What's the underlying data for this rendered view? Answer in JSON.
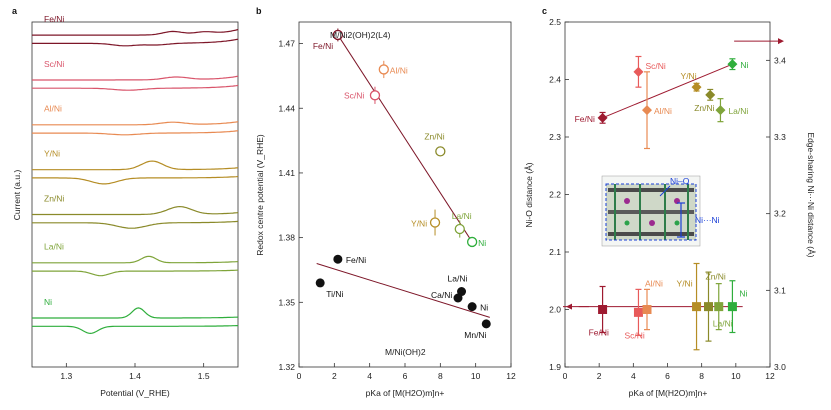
{
  "panels": {
    "a": "a",
    "b": "b",
    "c": "c"
  },
  "chart_data": [
    {
      "id": "a",
      "type": "line",
      "title": "",
      "xlabel": "Potential (V_RHE)",
      "ylabel": "Current (a.u.)",
      "xlim": [
        1.25,
        1.55
      ],
      "xticks": [
        "1.3",
        "1.4",
        "1.5"
      ],
      "series": [
        {
          "name": "Fe/Ni",
          "color": "#7d1628",
          "baseline": 0.95,
          "peaks": [
            {
              "x": 1.455,
              "a": 0.22,
              "w": 0.02
            },
            {
              "x": 1.5,
              "a": 0.15,
              "w": 0.02
            }
          ],
          "rise": 0.9
        },
        {
          "name": "Sc/Ni",
          "color": "#d9556b",
          "baseline": 0.82,
          "peaks": [
            {
              "x": 1.46,
              "a": 0.18,
              "w": 0.025
            }
          ],
          "rise": 0.6
        },
        {
          "name": "Al/Ni",
          "color": "#e88a52",
          "baseline": 0.69,
          "peaks": [
            {
              "x": 1.455,
              "a": 0.16,
              "w": 0.025
            }
          ],
          "rise": 0.5
        },
        {
          "name": "Y/Ni",
          "color": "#b58d25",
          "baseline": 0.56,
          "peaks": [
            {
              "x": 1.425,
              "a": 0.55,
              "w": 0.022
            }
          ],
          "rise": 0.3
        },
        {
          "name": "Zn/Ni",
          "color": "#8a8a2a",
          "baseline": 0.43,
          "peaks": [
            {
              "x": 1.465,
              "a": 0.5,
              "w": 0.025
            }
          ],
          "rise": 0.3
        },
        {
          "name": "La/Ni",
          "color": "#7fa43a",
          "baseline": 0.29,
          "peaks": [
            {
              "x": 1.42,
              "a": 0.42,
              "w": 0.015
            }
          ],
          "rise": 0.2
        },
        {
          "name": "Ni",
          "color": "#2fae3c",
          "baseline": 0.13,
          "peaks": [
            {
              "x": 1.405,
              "a": 0.65,
              "w": 0.013
            }
          ],
          "rise": 0.15
        }
      ]
    },
    {
      "id": "b",
      "type": "scatter",
      "xlabel": "pKa of [M(H2O)m]n+",
      "ylabel": "Redox centre potential (V_RHE)",
      "xlim": [
        0,
        12
      ],
      "ylim": [
        1.32,
        1.48
      ],
      "xticks": [
        "0",
        "2",
        "4",
        "6",
        "8",
        "10",
        "12"
      ],
      "yticks": [
        "1.32",
        "1.35",
        "1.38",
        "1.41",
        "1.44",
        "1.47"
      ],
      "group_label_top": "M/Ni2(OH)2(L4)",
      "group_label_bottom": "M/Ni(OH)2",
      "series": [
        {
          "name": "M/Ni2(OH)2(L4)",
          "marker": "open-circle",
          "points": [
            {
              "label": "Fe/Ni",
              "x": 2.2,
              "y": 1.474,
              "err": 0.003,
              "color": "#7d1628"
            },
            {
              "label": "Al/Ni",
              "x": 4.8,
              "y": 1.458,
              "err": 0.004,
              "color": "#e88a52"
            },
            {
              "label": "Sc/Ni",
              "x": 4.3,
              "y": 1.446,
              "err": 0.004,
              "color": "#d9556b"
            },
            {
              "label": "Zn/Ni",
              "x": 8.0,
              "y": 1.42,
              "err": 0.002,
              "color": "#8a8a2a"
            },
            {
              "label": "Y/Ni",
              "x": 7.7,
              "y": 1.387,
              "err": 0.006,
              "color": "#b58d25"
            },
            {
              "label": "La/Ni",
              "x": 9.1,
              "y": 1.384,
              "err": 0.004,
              "color": "#7fa43a"
            },
            {
              "label": "Ni",
              "x": 9.8,
              "y": 1.378,
              "err": 0.002,
              "color": "#2fae3c"
            }
          ],
          "fit": {
            "x": [
              2.2,
              9.8
            ],
            "y": [
              1.474,
              1.378
            ],
            "color": "#7d1628"
          }
        },
        {
          "name": "M/Ni(OH)2",
          "marker": "filled-circle",
          "points": [
            {
              "label": "Fe/Ni",
              "x": 2.2,
              "y": 1.37
            },
            {
              "label": "Ti/Ni",
              "x": 1.2,
              "y": 1.359
            },
            {
              "label": "La/Ni",
              "x": 9.2,
              "y": 1.355
            },
            {
              "label": "Ca/Ni",
              "x": 9.0,
              "y": 1.352
            },
            {
              "label": "Ni",
              "x": 9.8,
              "y": 1.348
            },
            {
              "label": "Mn/Ni",
              "x": 10.6,
              "y": 1.34
            }
          ],
          "fit": {
            "x": [
              1.0,
              10.8
            ],
            "y": [
              1.368,
              1.343
            ],
            "color": "#7d1628"
          }
        }
      ]
    },
    {
      "id": "c",
      "type": "scatter",
      "xlabel": "pKa of [M(H2O)m]n+",
      "ylabel": "Ni-O distance (Å)",
      "ylabel_right": "Edge-sharing Ni···Ni distance (Å)",
      "xlim": [
        0,
        12
      ],
      "ylim": [
        1.9,
        2.5
      ],
      "ylim_right": [
        3.0,
        3.45
      ],
      "xticks": [
        "0",
        "2",
        "4",
        "6",
        "8",
        "10",
        "12"
      ],
      "yticks": [
        "1.9",
        "2.0",
        "2.1",
        "2.2",
        "2.3",
        "2.4",
        "2.5"
      ],
      "yticks_right": [
        "3.0",
        "3.1",
        "3.2",
        "3.3",
        "3.4"
      ],
      "inset_labels": {
        "nio": "Ni–O",
        "nini": "Ni···Ni"
      },
      "series": [
        {
          "name": "Edge-sharing Ni···Ni distance",
          "axis": "right",
          "marker": "diamond",
          "points": [
            {
              "label": "Fe/Ni",
              "x": 2.2,
              "y": 3.325,
              "err": 0.007,
              "color": "#9e1a30"
            },
            {
              "label": "Sc/Ni",
              "x": 4.3,
              "y": 3.385,
              "err": 0.02,
              "color": "#e85a5a"
            },
            {
              "label": "Al/Ni",
              "x": 4.8,
              "y": 3.335,
              "err": 0.05,
              "color": "#e88a52"
            },
            {
              "label": "Y/Ni",
              "x": 7.7,
              "y": 3.365,
              "err": 0.005,
              "color": "#b58d25"
            },
            {
              "label": "Zn/Ni",
              "x": 8.5,
              "y": 3.355,
              "err": 0.007,
              "color": "#8a8a2a"
            },
            {
              "label": "La/Ni",
              "x": 9.1,
              "y": 3.335,
              "err": 0.015,
              "color": "#7fa43a"
            },
            {
              "label": "Ni",
              "x": 9.8,
              "y": 3.395,
              "err": 0.007,
              "color": "#2fae3c"
            }
          ],
          "fit": {
            "x": [
              2.2,
              9.8
            ],
            "y": [
              3.325,
              3.395
            ],
            "color": "#9e1a30"
          }
        },
        {
          "name": "Ni–O distance",
          "axis": "left",
          "marker": "square",
          "points": [
            {
              "label": "Fe/Ni",
              "x": 2.2,
              "y": 2.0,
              "err": 0.04,
              "color": "#9e1a30"
            },
            {
              "label": "Sc/Ni",
              "x": 4.3,
              "y": 1.995,
              "err": 0.04,
              "color": "#e85a5a"
            },
            {
              "label": "Al/Ni",
              "x": 4.8,
              "y": 2.0,
              "err": 0.035,
              "color": "#e88a52"
            },
            {
              "label": "Y/Ni",
              "x": 7.7,
              "y": 2.005,
              "err": 0.075,
              "color": "#b58d25"
            },
            {
              "label": "Zn/Ni",
              "x": 8.4,
              "y": 2.005,
              "err": 0.06,
              "color": "#8a8a2a"
            },
            {
              "label": "La/Ni",
              "x": 9.0,
              "y": 2.005,
              "err": 0.04,
              "color": "#7fa43a"
            },
            {
              "label": "Ni",
              "x": 9.8,
              "y": 2.005,
              "err": 0.045,
              "color": "#2fae3c"
            }
          ],
          "fit": {
            "x": [
              0.8,
              10.4
            ],
            "y": [
              2.005,
              2.005
            ],
            "color": "#9e1a30"
          }
        }
      ]
    }
  ]
}
